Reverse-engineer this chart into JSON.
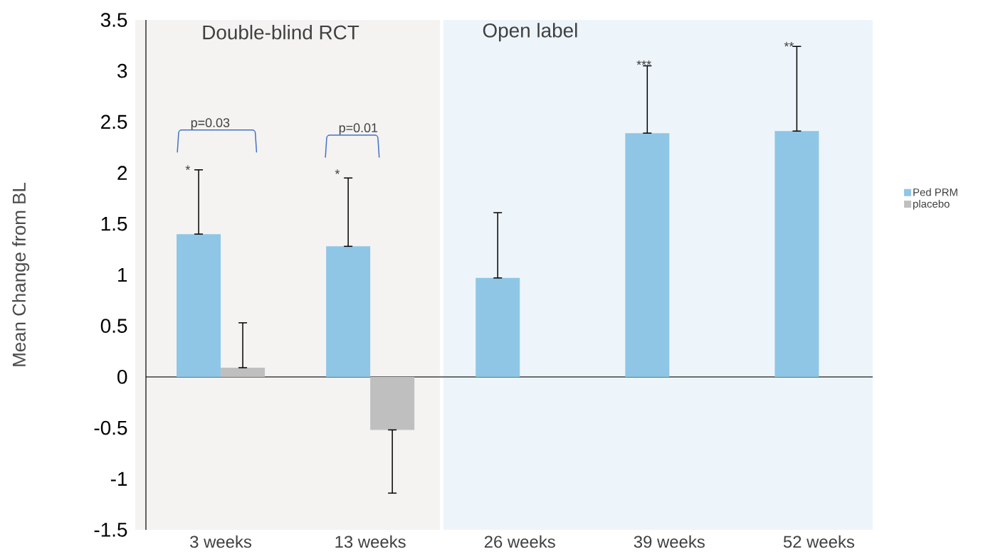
{
  "chart_data": {
    "type": "bar",
    "ylabel": "Mean Change from BL",
    "categories": [
      "3 weeks",
      "13 weeks",
      "26 weeks",
      "39 weeks",
      "52 weeks"
    ],
    "series": [
      {
        "name": "Ped PRM",
        "color": "#8fc6e6",
        "values": [
          1.4,
          1.28,
          0.97,
          2.39,
          2.41
        ],
        "errors": [
          [
            1.4,
            2.03
          ],
          [
            1.28,
            1.95
          ],
          [
            0.97,
            1.61
          ],
          [
            2.39,
            3.05
          ],
          [
            2.41,
            3.24
          ]
        ]
      },
      {
        "name": "placebo",
        "color": "#bfbfbf",
        "values": [
          0.09,
          -0.52,
          null,
          null,
          null
        ],
        "errors": [
          [
            0.09,
            0.53
          ],
          [
            -1.14,
            -0.52
          ],
          null,
          null,
          null
        ]
      }
    ],
    "ylim": [
      -1.5,
      3.5
    ],
    "yticks": [
      -1.5,
      -1,
      -0.5,
      0,
      0.5,
      1,
      1.5,
      2,
      2.5,
      3,
      3.5
    ],
    "ref_lines": [
      {
        "axis": "y",
        "value": 0,
        "color": "#404040"
      }
    ],
    "annotations": [
      "Double-blind RCT",
      "Open label",
      "p=0.03",
      "p=0.01",
      "*",
      "*",
      "***",
      "**"
    ],
    "legend": "right"
  }
}
